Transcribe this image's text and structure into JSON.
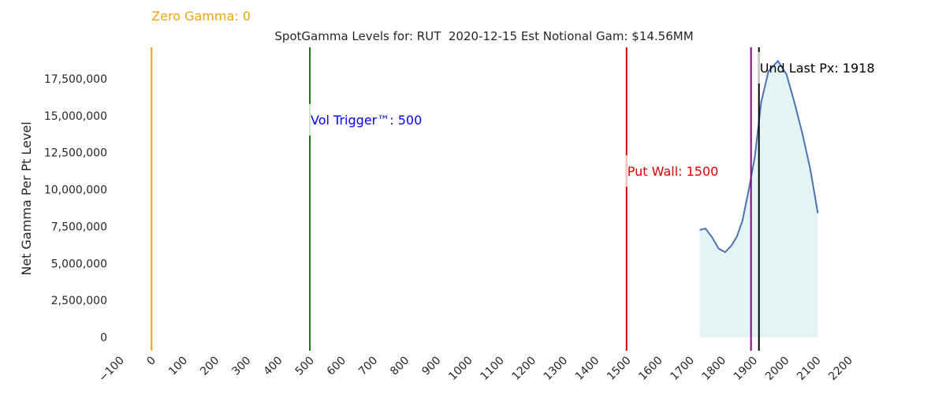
{
  "chart_data": {
    "type": "area",
    "title": "SpotGamma Levels for: RUT  2020-12-15 Est Notional Gam: $14.56MM",
    "y_label": "Net Gamma Per Pt Level",
    "x": [
      1731,
      1749,
      1769,
      1791,
      1811,
      1831,
      1848,
      1866,
      1886,
      1905,
      1925,
      1948,
      1978,
      2005,
      2030,
      2055,
      2080,
      2104
    ],
    "values": [
      7260000,
      7360000,
      6800000,
      6000000,
      5760000,
      6200000,
      6800000,
      7900000,
      10000000,
      12200000,
      15900000,
      18000000,
      18700000,
      17800000,
      15900000,
      13800000,
      11400000,
      8400000
    ],
    "color": "#4c72b0",
    "fill": "#e3f4f4",
    "levels": [
      {
        "label": "Zero Gamma: 0",
        "value": 0,
        "color": "#f0a30a",
        "label_color": "#f0a30a"
      },
      {
        "label": "Vol Trigger™: 500",
        "value": 500,
        "color": "#008000",
        "label_color": "#0000ff"
      },
      {
        "label": "Put Wall: 1500",
        "value": 1500,
        "color": "#e00000",
        "label_color": "#e00000"
      },
      {
        "value": 1893,
        "color": "#800080"
      },
      {
        "label": "Und Last Px: 1918",
        "value": 1918,
        "color": "#000000",
        "label_color": "#000000"
      }
    ],
    "xlim": [
      -100,
      2200
    ],
    "xticks": [
      {
        "value": -100,
        "label": "−100"
      },
      0,
      100,
      200,
      300,
      400,
      500,
      600,
      700,
      800,
      900,
      1000,
      1100,
      1200,
      1300,
      1400,
      1500,
      1600,
      1700,
      1800,
      1900,
      2000,
      2100,
      2200
    ],
    "ylim": [
      -907000,
      19630000
    ],
    "yticks": [
      0,
      {
        "value": 2500000,
        "label": "2,500,000"
      },
      {
        "value": 5000000,
        "label": "5,000,000"
      },
      {
        "value": 7500000,
        "label": "7,500,000"
      },
      {
        "value": 10000000,
        "label": "10,000,000"
      },
      {
        "value": 12500000,
        "label": "12,500,000"
      },
      {
        "value": 15000000,
        "label": "15,000,000"
      },
      {
        "value": 17500000,
        "label": "17,500,000"
      }
    ]
  }
}
